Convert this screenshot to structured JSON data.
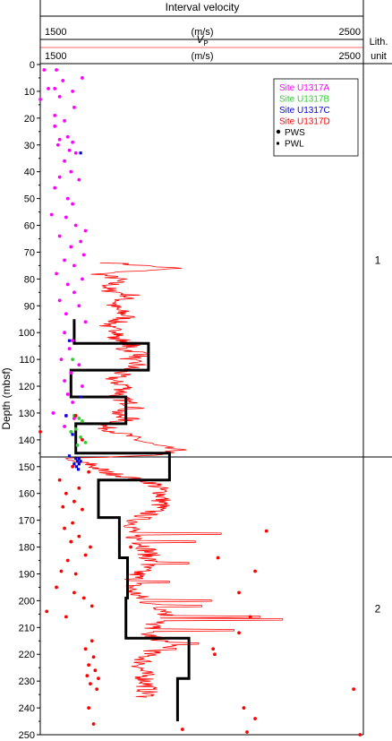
{
  "chart_data": {
    "type": "scatter",
    "title": "Interval velocity",
    "header": {
      "interval_unit": "(m/s)",
      "interval_min_label": "1500",
      "interval_max_label": "2500",
      "vp_label": "V",
      "vp_subscript": "P",
      "vp_unit": "(m/s)",
      "vp_min_label": "1500",
      "vp_max_label": "2500",
      "lith_label_line1": "Lith.",
      "lith_label_line2": "unit"
    },
    "xlim": [
      1500,
      2500
    ],
    "ylim": [
      0,
      250
    ],
    "ylabel": "Depth (mbsf)",
    "y_ticks": [
      0,
      10,
      20,
      30,
      40,
      50,
      60,
      70,
      80,
      90,
      100,
      110,
      120,
      130,
      140,
      150,
      160,
      170,
      180,
      190,
      200,
      210,
      220,
      230,
      240,
      250
    ],
    "unit_boundary_depth": 147,
    "lith_units": [
      {
        "label": "1",
        "depth": 73
      },
      {
        "label": "2",
        "depth": 203
      }
    ],
    "legend": [
      {
        "label": "Site U1317A",
        "color": "#ff00ff"
      },
      {
        "label": "Site U1317B",
        "color": "#33cc33"
      },
      {
        "label": "Site U1317C",
        "color": "#0000dd"
      },
      {
        "label": "Site U1317D",
        "color": "#ff0000"
      },
      {
        "label": "PWS",
        "marker": "dot"
      },
      {
        "label": "PWL",
        "marker": "square"
      }
    ],
    "interval_velocity": {
      "color": "#000000",
      "steps": [
        {
          "top": 95,
          "bottom": 104,
          "v": 1605
        },
        {
          "top": 104,
          "bottom": 114,
          "v": 1835
        },
        {
          "top": 114,
          "bottom": 124,
          "v": 1595
        },
        {
          "top": 124,
          "bottom": 134,
          "v": 1765
        },
        {
          "top": 134,
          "bottom": 145,
          "v": 1610
        },
        {
          "top": 145,
          "bottom": 155,
          "v": 1900
        },
        {
          "top": 155,
          "bottom": 169,
          "v": 1680
        },
        {
          "top": 169,
          "bottom": 184,
          "v": 1745
        },
        {
          "top": 184,
          "bottom": 199,
          "v": 1770
        },
        {
          "top": 199,
          "bottom": 214,
          "v": 1765
        },
        {
          "top": 214,
          "bottom": 229,
          "v": 1960
        },
        {
          "top": 229,
          "bottom": 245,
          "v": 1925
        }
      ]
    },
    "vp_logging": {
      "color": "#ff0000",
      "anchors": [
        [
          74,
          1720
        ],
        [
          76,
          1920
        ],
        [
          78,
          1680
        ],
        [
          80,
          1740
        ],
        [
          84,
          1700
        ],
        [
          86,
          1780
        ],
        [
          90,
          1720
        ],
        [
          94,
          1770
        ],
        [
          98,
          1700
        ],
        [
          100,
          1760
        ],
        [
          102,
          1720
        ],
        [
          104,
          1800
        ],
        [
          106,
          1750
        ],
        [
          108,
          1830
        ],
        [
          110,
          1770
        ],
        [
          112,
          1800
        ],
        [
          114,
          1760
        ],
        [
          118,
          1720
        ],
        [
          120,
          1770
        ],
        [
          124,
          1740
        ],
        [
          128,
          1800
        ],
        [
          130,
          1720
        ],
        [
          132,
          1780
        ],
        [
          135,
          1690
        ],
        [
          138,
          1760
        ],
        [
          140,
          1800
        ],
        [
          142,
          1850
        ],
        [
          144,
          1930
        ],
        [
          146,
          1820
        ],
        [
          147,
          1550
        ],
        [
          149,
          1650
        ],
        [
          152,
          1700
        ],
        [
          156,
          1850
        ],
        [
          160,
          1880
        ],
        [
          165,
          1870
        ],
        [
          170,
          1800
        ],
        [
          175,
          1780
        ],
        [
          180,
          1830
        ],
        [
          185,
          1840
        ],
        [
          190,
          1800
        ],
        [
          196,
          1780
        ],
        [
          200,
          1820
        ],
        [
          204,
          1900
        ],
        [
          208,
          1860
        ],
        [
          212,
          1820
        ],
        [
          216,
          1900
        ],
        [
          220,
          1830
        ],
        [
          225,
          1810
        ],
        [
          230,
          1830
        ],
        [
          236,
          1830
        ]
      ],
      "spikes": [
        [
          175,
          2060
        ],
        [
          178,
          1980
        ],
        [
          186,
          1960
        ],
        [
          193,
          1900
        ],
        [
          200,
          2030
        ],
        [
          202,
          2000
        ],
        [
          206,
          2180
        ],
        [
          207,
          2250
        ],
        [
          211,
          2100
        ],
        [
          216,
          1990
        ],
        [
          218,
          1920
        ]
      ]
    },
    "series": [
      {
        "name": "Site U1317A",
        "marker": "dot",
        "color": "#ff00ff",
        "points": [
          [
            1512,
            2
          ],
          [
            1550,
            2
          ],
          [
            1630,
            5
          ],
          [
            1570,
            6
          ],
          [
            1525,
            9
          ],
          [
            1545,
            9
          ],
          [
            1600,
            10
          ],
          [
            1500,
            13
          ],
          [
            1560,
            12
          ],
          [
            1605,
            16
          ],
          [
            1545,
            19
          ],
          [
            1575,
            21
          ],
          [
            1545,
            23
          ],
          [
            1585,
            27
          ],
          [
            1560,
            28
          ],
          [
            1600,
            29
          ],
          [
            1555,
            30
          ],
          [
            1590,
            32
          ],
          [
            1610,
            33
          ],
          [
            1575,
            36
          ],
          [
            1595,
            40
          ],
          [
            1560,
            42
          ],
          [
            1620,
            43
          ],
          [
            1545,
            46
          ],
          [
            1585,
            50
          ],
          [
            1600,
            52
          ],
          [
            1535,
            56
          ],
          [
            1580,
            57
          ],
          [
            1610,
            60
          ],
          [
            1640,
            62
          ],
          [
            1560,
            64
          ],
          [
            1625,
            66
          ],
          [
            1595,
            68
          ],
          [
            1635,
            71
          ],
          [
            1575,
            73
          ],
          [
            1605,
            75
          ],
          [
            1550,
            78
          ],
          [
            1630,
            80
          ],
          [
            1585,
            82
          ],
          [
            1605,
            85
          ],
          [
            1560,
            88
          ],
          [
            1620,
            90
          ],
          [
            1580,
            93
          ],
          [
            1640,
            96
          ],
          [
            1575,
            100
          ],
          [
            1600,
            103
          ],
          [
            1590,
            106
          ],
          [
            1565,
            110
          ],
          [
            1620,
            112
          ],
          [
            1595,
            115
          ],
          [
            1575,
            118
          ],
          [
            1630,
            120
          ],
          [
            1585,
            123
          ],
          [
            1600,
            126
          ],
          [
            1540,
            130
          ],
          [
            1580,
            131
          ],
          [
            1605,
            132
          ],
          [
            1575,
            135
          ]
        ]
      },
      {
        "name": "Site U1317B",
        "marker": "dot",
        "color": "#33cc33",
        "points": [
          [
            1600,
            110
          ],
          [
            1605,
            131
          ],
          [
            1620,
            132
          ],
          [
            1630,
            133
          ],
          [
            1610,
            136
          ],
          [
            1595,
            137
          ],
          [
            1625,
            139
          ],
          [
            1640,
            141
          ],
          [
            1615,
            142
          ]
        ]
      },
      {
        "name": "Site U1317C",
        "marker": "square",
        "color": "#0000dd",
        "points": [
          [
            1625,
            33
          ],
          [
            1590,
            103
          ],
          [
            1625,
            124
          ],
          [
            1580,
            131
          ],
          [
            1600,
            138
          ],
          [
            1590,
            146
          ],
          [
            1610,
            147
          ],
          [
            1615,
            148
          ],
          [
            1620,
            149
          ],
          [
            1612,
            150
          ],
          [
            1625,
            148
          ],
          [
            1620,
            147
          ],
          [
            1605,
            149
          ],
          [
            1618,
            151
          ]
        ]
      },
      {
        "name": "Site U1317D",
        "marker": "dot",
        "color": "#ff0000",
        "points": [
          [
            1500,
            137
          ],
          [
            1610,
            131
          ],
          [
            1630,
            140
          ],
          [
            1600,
            150
          ],
          [
            1650,
            152
          ],
          [
            1560,
            155
          ],
          [
            1620,
            158
          ],
          [
            1580,
            160
          ],
          [
            1605,
            163
          ],
          [
            1570,
            165
          ],
          [
            1630,
            166
          ],
          [
            1600,
            171
          ],
          [
            1575,
            173
          ],
          [
            1620,
            176
          ],
          [
            1595,
            178
          ],
          [
            1655,
            180
          ],
          [
            1640,
            183
          ],
          [
            1585,
            185
          ],
          [
            1565,
            189
          ],
          [
            1610,
            190
          ],
          [
            1550,
            195
          ],
          [
            1605,
            197
          ],
          [
            1635,
            199
          ],
          [
            1520,
            204
          ],
          [
            1580,
            206
          ],
          [
            1660,
            202
          ],
          [
            2150,
            206
          ],
          [
            2115,
            212
          ],
          [
            2035,
            218
          ],
          [
            2040,
            220
          ],
          [
            1660,
            215
          ],
          [
            1640,
            218
          ],
          [
            1665,
            221
          ],
          [
            1650,
            224
          ],
          [
            1670,
            226
          ],
          [
            1645,
            228
          ],
          [
            1680,
            229
          ],
          [
            1655,
            231
          ],
          [
            1675,
            233
          ],
          [
            2165,
            244
          ],
          [
            2130,
            240
          ],
          [
            1650,
            240
          ],
          [
            1665,
            246
          ],
          [
            1940,
            248
          ],
          [
            2140,
            249
          ],
          [
            2490,
            250
          ],
          [
            2470,
            233
          ],
          [
            2200,
            174
          ],
          [
            1780,
            180
          ],
          [
            2050,
            184
          ],
          [
            2165,
            189
          ],
          [
            2115,
            197
          ]
        ]
      }
    ]
  }
}
